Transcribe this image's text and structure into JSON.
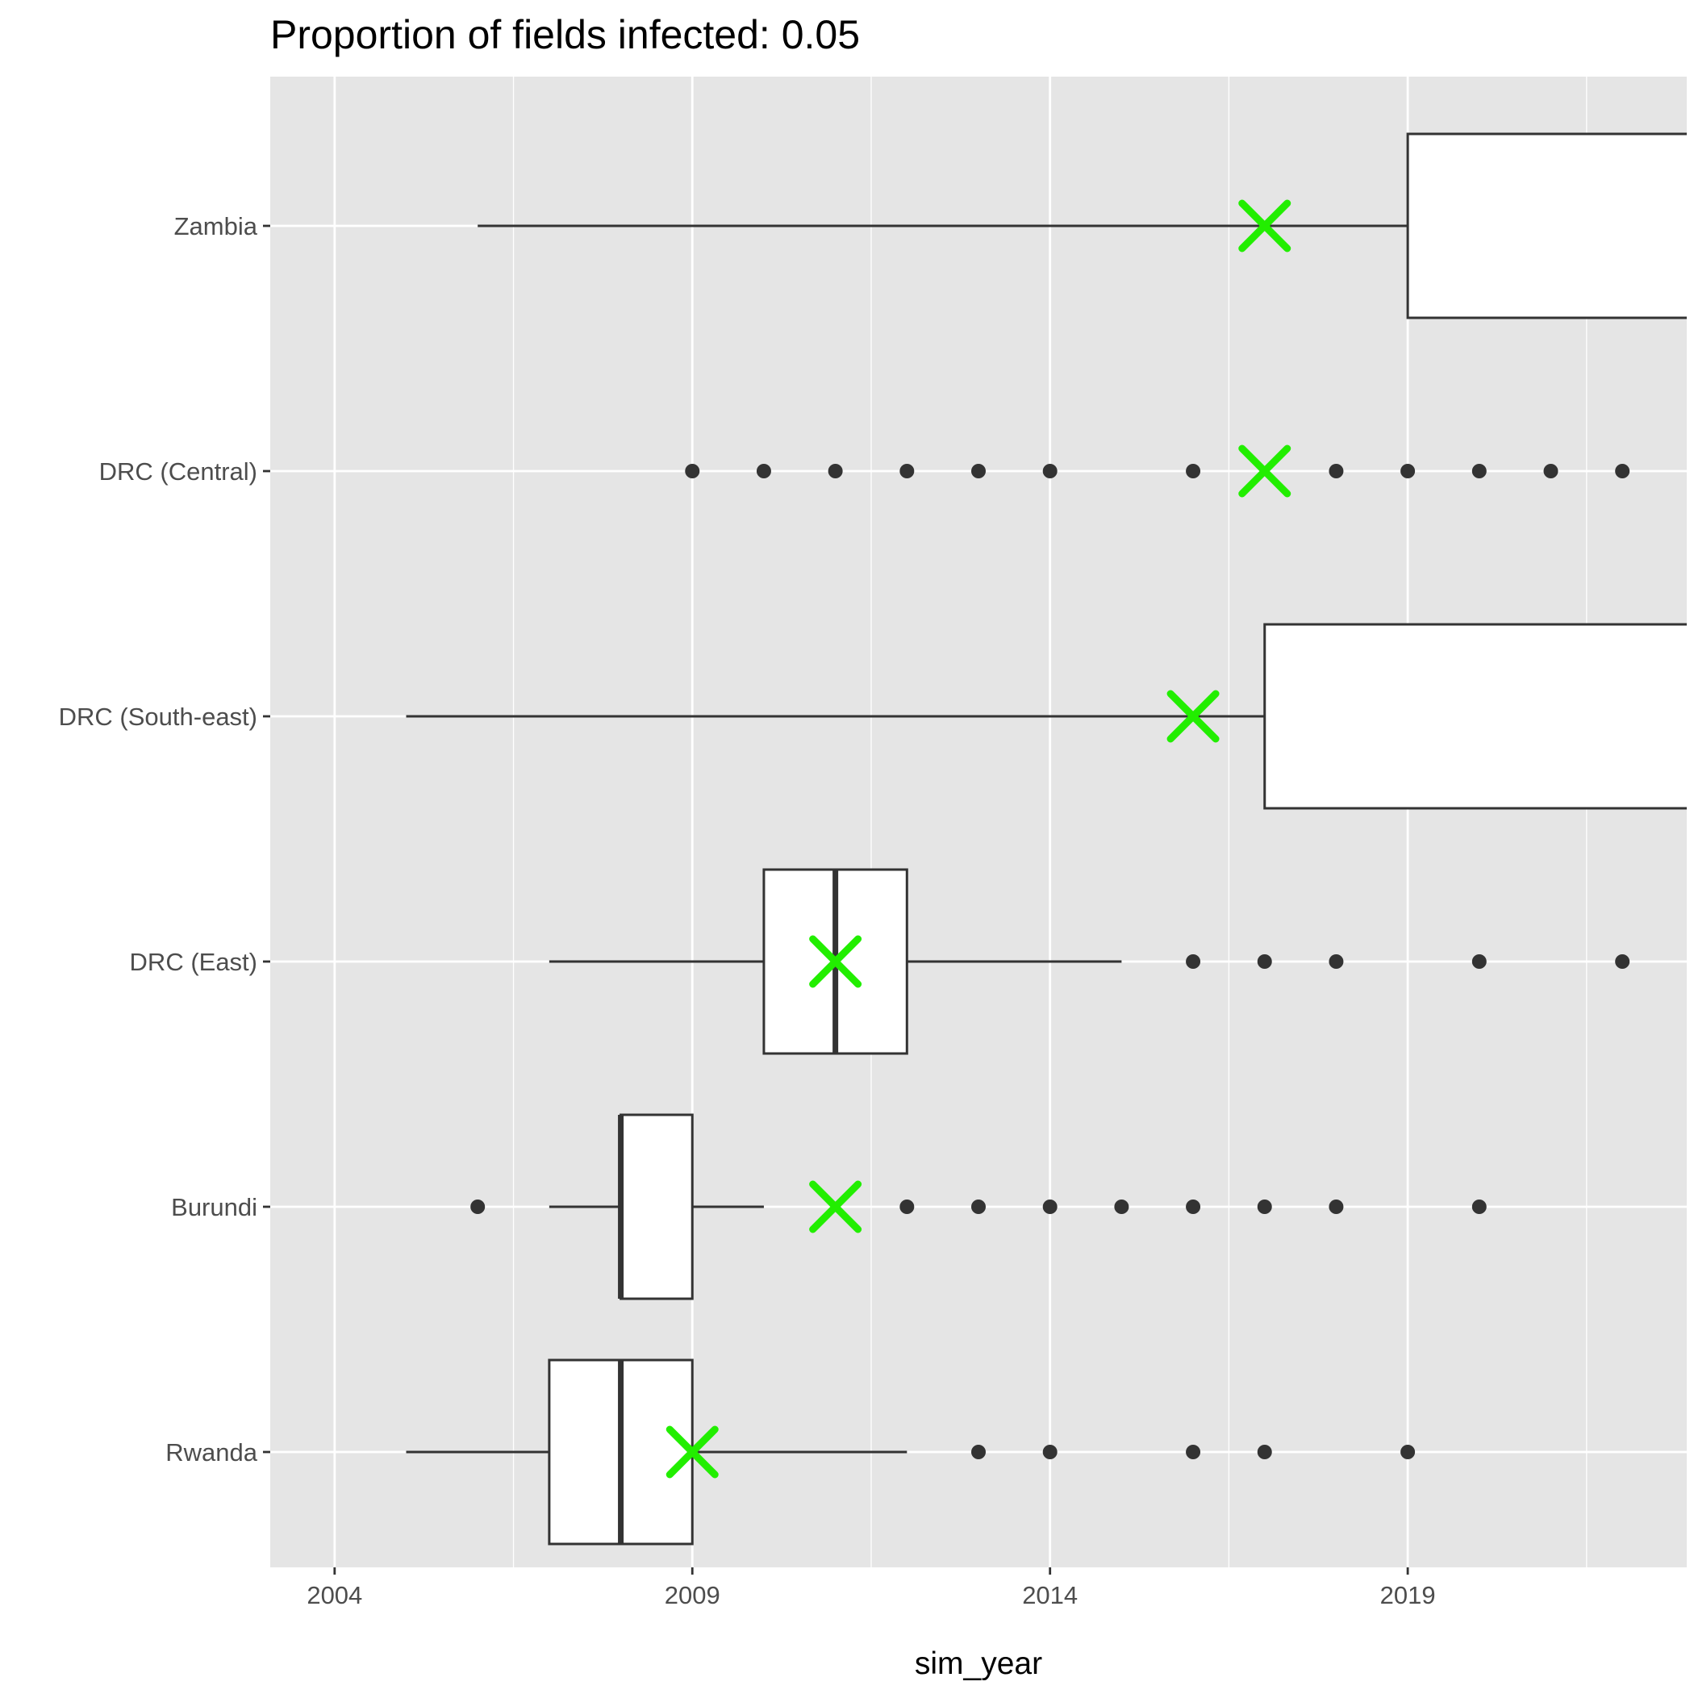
{
  "chart_data": {
    "type": "boxplot",
    "orientation": "horizontal",
    "title": "Proportion of fields infected: 0.05",
    "xlabel": "sim_year",
    "ylabel": "",
    "xlim": [
      2003.1,
      2022.9
    ],
    "x_ticks": [
      2004,
      2009,
      2014,
      2019
    ],
    "x_ticks_minor": [
      2006.5,
      2011.5,
      2016.5,
      2021.5
    ],
    "categories": [
      "Zambia",
      "DRC (Central)",
      "DRC (South-east)",
      "DRC (East)",
      "Burundi",
      "Rwanda"
    ],
    "grid": true,
    "colors": {
      "panel_bg": "#e5e5e5",
      "grid": "#ffffff",
      "box_fill": "#ffffff",
      "box_line": "#333333",
      "outlier": "#333333",
      "marker": "#22ee00",
      "tick_text": "#4d4d4d"
    },
    "observed_marker": "x-mark",
    "boxes": [
      {
        "category": "Zambia",
        "whisker_low": 2006,
        "q1": 2019,
        "median": null,
        "q3": null,
        "whisker_high": null,
        "outliers": [],
        "marker": 2017
      },
      {
        "category": "DRC (Central)",
        "whisker_low": null,
        "q1": null,
        "median": null,
        "q3": null,
        "whisker_high": null,
        "outliers": [
          2009,
          2010,
          2011,
          2012,
          2013,
          2014,
          2016,
          2018,
          2019,
          2020,
          2021,
          2022
        ],
        "marker": 2017
      },
      {
        "category": "DRC (South-east)",
        "whisker_low": 2005,
        "q1": 2017,
        "median": null,
        "q3": null,
        "whisker_high": null,
        "outliers": [],
        "marker": 2016
      },
      {
        "category": "DRC (East)",
        "whisker_low": 2007,
        "q1": 2010,
        "median": 2011,
        "q3": 2012,
        "whisker_high": 2015,
        "outliers": [
          2016,
          2017,
          2018,
          2020,
          2022
        ],
        "marker": 2011
      },
      {
        "category": "Burundi",
        "whisker_low": 2007,
        "q1": 2008,
        "median": 2008,
        "q3": 2009,
        "whisker_high": 2010,
        "outliers": [
          2006,
          2012,
          2013,
          2014,
          2015,
          2016,
          2017,
          2018,
          2020
        ],
        "marker": 2011
      },
      {
        "category": "Rwanda",
        "whisker_low": 2005,
        "q1": 2007,
        "median": 2008,
        "q3": 2009,
        "whisker_high": 2012,
        "outliers": [
          2013,
          2014,
          2016,
          2017,
          2019
        ],
        "marker": 2009
      }
    ]
  }
}
